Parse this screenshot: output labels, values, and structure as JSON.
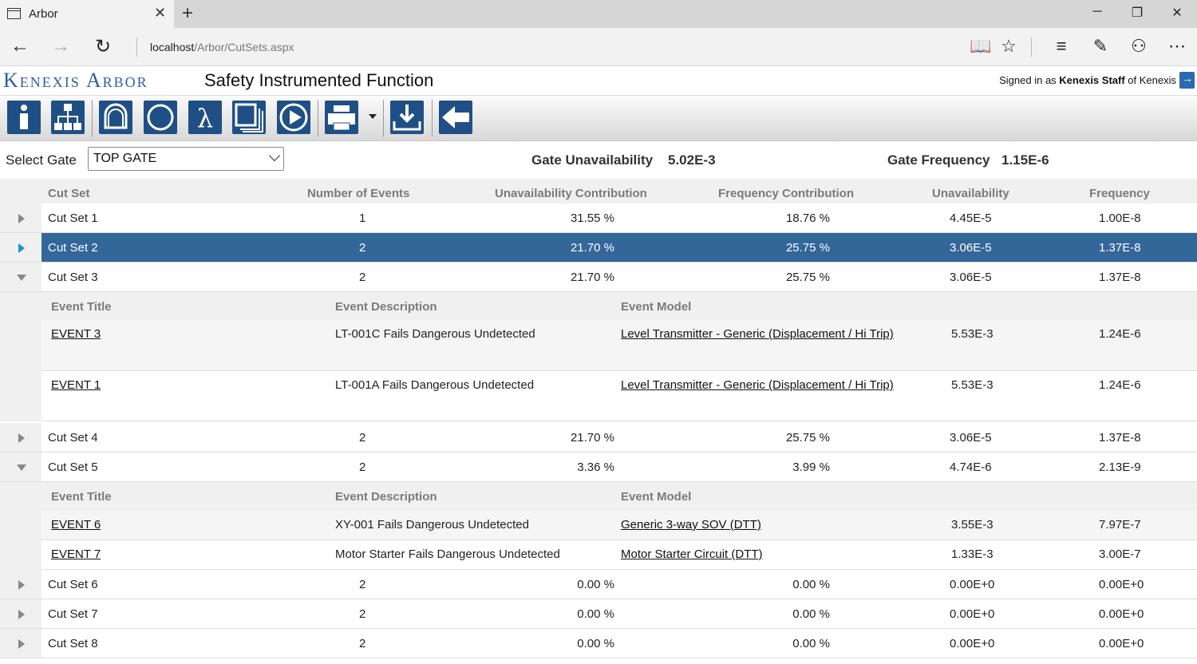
{
  "browser": {
    "tab_title": "Arbor",
    "url_host": "localhost",
    "url_path": "/Arbor/CutSets.aspx"
  },
  "app": {
    "logo": "Kenexis Arbor",
    "title": "Safety Instrumented Function",
    "signin_prefix": "Signed in as ",
    "signin_user": "Kenexis Staff",
    "signin_suffix": " of Kenexis"
  },
  "toolbar": {
    "buttons": [
      "info-icon",
      "hierarchy-icon",
      "bell-icon",
      "circle-icon",
      "lambda-icon",
      "copy-icon",
      "play-icon",
      "print-icon",
      "download-icon",
      "back-arrow-icon"
    ]
  },
  "gate": {
    "label": "Select Gate",
    "selected": "TOP GATE",
    "unavail_label": "Gate Unavailability",
    "unavail_value": "5.02E-3",
    "freq_label": "Gate Frequency",
    "freq_value": "1.15E-6"
  },
  "columns": {
    "cut_set": "Cut Set",
    "num_events": "Number of Events",
    "unavail_contrib": "Unavailability Contribution",
    "freq_contrib": "Frequency Contribution",
    "unavail": "Unavailability",
    "freq": "Frequency"
  },
  "detail_columns": {
    "title": "Event Title",
    "desc": "Event Description",
    "model": "Event Model"
  },
  "cut_sets": [
    {
      "name": "Cut Set 1",
      "events": "1",
      "uc": "31.55 %",
      "fc": "18.76 %",
      "u": "4.45E-5",
      "f": "1.00E-8"
    },
    {
      "name": "Cut Set 2",
      "events": "2",
      "uc": "21.70 %",
      "fc": "25.75 %",
      "u": "3.06E-5",
      "f": "1.37E-8"
    },
    {
      "name": "Cut Set 3",
      "events": "2",
      "uc": "21.70 %",
      "fc": "25.75 %",
      "u": "3.06E-5",
      "f": "1.37E-8"
    },
    {
      "name": "Cut Set 4",
      "events": "2",
      "uc": "21.70 %",
      "fc": "25.75 %",
      "u": "3.06E-5",
      "f": "1.37E-8"
    },
    {
      "name": "Cut Set 5",
      "events": "2",
      "uc": "3.36 %",
      "fc": "3.99 %",
      "u": "4.74E-6",
      "f": "2.13E-9"
    },
    {
      "name": "Cut Set 6",
      "events": "2",
      "uc": "0.00 %",
      "fc": "0.00 %",
      "u": "0.00E+0",
      "f": "0.00E+0"
    },
    {
      "name": "Cut Set 7",
      "events": "2",
      "uc": "0.00 %",
      "fc": "0.00 %",
      "u": "0.00E+0",
      "f": "0.00E+0"
    },
    {
      "name": "Cut Set 8",
      "events": "2",
      "uc": "0.00 %",
      "fc": "0.00 %",
      "u": "0.00E+0",
      "f": "0.00E+0"
    }
  ],
  "cut_set_3_events": [
    {
      "title": "EVENT 3",
      "desc": "LT-001C Fails Dangerous Undetected",
      "model": "Level Transmitter - Generic (Displacement / Hi Trip)",
      "u": "5.53E-3",
      "f": "1.24E-6"
    },
    {
      "title": "EVENT 1",
      "desc": "LT-001A Fails Dangerous Undetected",
      "model": "Level Transmitter - Generic (Displacement / Hi Trip)",
      "u": "5.53E-3",
      "f": "1.24E-6"
    }
  ],
  "cut_set_5_events": [
    {
      "title": "EVENT 6",
      "desc": "XY-001 Fails Dangerous Undetected",
      "model": "Generic 3-way SOV (DTT)",
      "u": "3.55E-3",
      "f": "7.97E-7"
    },
    {
      "title": "EVENT 7",
      "desc": "Motor Starter Fails Dangerous Undetected",
      "model": "Motor Starter Circuit (DTT)",
      "u": "1.33E-3",
      "f": "3.00E-7"
    }
  ]
}
